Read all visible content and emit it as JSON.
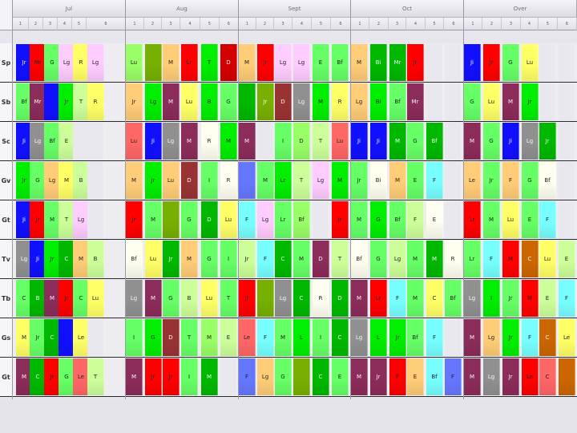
{
  "palette": {
    "r": "#ff0000",
    "R": "#d40000",
    "g": "#00ee00",
    "G": "#00b800",
    "b": "#1010ff",
    "y": "#ffff66",
    "p": "#ffccff",
    "m": "#8c2c5a",
    "o": "#ffcc77",
    "a": "#909090",
    "c": "#77ffff",
    "n": "#ccff99",
    "l": "#66ff66",
    "L": "#99ff66",
    "w": "#fffff0",
    "k": "#ff6666",
    "s": "#6677ff",
    "t": "#cc6600",
    "v": "#77b000",
    "d": "#993333",
    "e": "#e8e8ee"
  },
  "header": {
    "groups": [
      "Jul",
      "Aug",
      "Sept",
      "Oct",
      "Over"
    ],
    "subcols": [
      "1",
      "2",
      "3",
      "4",
      "5",
      "6",
      "1",
      "2",
      "3",
      "4",
      "5",
      "6",
      "1",
      "2",
      "3",
      "4",
      "5",
      "6",
      "1",
      "2",
      "3",
      "4",
      "5",
      "6",
      "1",
      "2",
      "3",
      "4",
      "5",
      "6"
    ]
  },
  "rows": [
    {
      "label": "Sp",
      "cells": [
        {
          "t": "Jr",
          "c": "b"
        },
        {
          "t": "Mr",
          "c": "r"
        },
        {
          "t": "G",
          "c": "l"
        },
        {
          "t": "Lg",
          "c": "p"
        },
        {
          "t": "R",
          "c": "y"
        },
        {
          "t": "Lg",
          "c": "p"
        },
        {
          "t": "Lu",
          "c": "L"
        },
        {
          "t": "",
          "c": "v"
        },
        {
          "t": "M",
          "c": "o"
        },
        {
          "t": "Lr",
          "c": "r"
        },
        {
          "t": "T",
          "c": "g"
        },
        {
          "t": "D",
          "c": "R"
        },
        {
          "t": "M",
          "c": "o"
        },
        {
          "t": "Jr",
          "c": "r"
        },
        {
          "t": "Lg",
          "c": "p"
        },
        {
          "t": "Lg",
          "c": "p"
        },
        {
          "t": "E",
          "c": "l"
        },
        {
          "t": "Bf",
          "c": "l"
        },
        {
          "t": "M",
          "c": "o"
        },
        {
          "t": "Bi",
          "c": "G"
        },
        {
          "t": "Mr",
          "c": "G"
        },
        {
          "t": "Jr",
          "c": "r"
        },
        {
          "t": "",
          "c": "e"
        },
        {
          "t": "",
          "c": "e"
        },
        {
          "t": "Ji",
          "c": "b"
        },
        {
          "t": "Jr",
          "c": "r"
        },
        {
          "t": "G",
          "c": "l"
        },
        {
          "t": "Lu",
          "c": "y"
        },
        {
          "t": "",
          "c": "e"
        },
        {
          "t": "",
          "c": "e"
        }
      ]
    },
    {
      "label": "Sb",
      "cells": [
        {
          "t": "Bf",
          "c": "l"
        },
        {
          "t": "Mr",
          "c": "m"
        },
        {
          "t": "",
          "c": "b"
        },
        {
          "t": "Jr",
          "c": "g"
        },
        {
          "t": "T",
          "c": "n"
        },
        {
          "t": "R",
          "c": "y"
        },
        {
          "t": "Jr",
          "c": "o"
        },
        {
          "t": "Lg",
          "c": "g"
        },
        {
          "t": "M",
          "c": "m"
        },
        {
          "t": "Lu",
          "c": "y"
        },
        {
          "t": "B",
          "c": "g"
        },
        {
          "t": "G",
          "c": "l"
        },
        {
          "t": "",
          "c": "G"
        },
        {
          "t": "Jr",
          "c": "v"
        },
        {
          "t": "D",
          "c": "d"
        },
        {
          "t": "Lg",
          "c": "a"
        },
        {
          "t": "M",
          "c": "g"
        },
        {
          "t": "R",
          "c": "y"
        },
        {
          "t": "Lg",
          "c": "o"
        },
        {
          "t": "Bi",
          "c": "g"
        },
        {
          "t": "Bf",
          "c": "l"
        },
        {
          "t": "Mr",
          "c": "m"
        },
        {
          "t": "",
          "c": "e"
        },
        {
          "t": "",
          "c": "e"
        },
        {
          "t": "G",
          "c": "l"
        },
        {
          "t": "Lu",
          "c": "y"
        },
        {
          "t": "M",
          "c": "m"
        },
        {
          "t": "Jr",
          "c": "g"
        },
        {
          "t": "",
          "c": "e"
        },
        {
          "t": "",
          "c": "e"
        }
      ]
    },
    {
      "label": "Sc",
      "cells": [
        {
          "t": "Ji",
          "c": "b"
        },
        {
          "t": "Lg",
          "c": "a"
        },
        {
          "t": "Bf",
          "c": "l"
        },
        {
          "t": "E",
          "c": "n"
        },
        {
          "t": "",
          "c": "e"
        },
        {
          "t": "",
          "c": "e"
        },
        {
          "t": "Lu",
          "c": "k"
        },
        {
          "t": "Ji",
          "c": "b"
        },
        {
          "t": "Lg",
          "c": "a"
        },
        {
          "t": "M",
          "c": "m"
        },
        {
          "t": "R",
          "c": "w"
        },
        {
          "t": "M",
          "c": "g"
        },
        {
          "t": "M",
          "c": "m"
        },
        {
          "t": "",
          "c": "e"
        },
        {
          "t": "I",
          "c": "l"
        },
        {
          "t": "D",
          "c": "L"
        },
        {
          "t": "T",
          "c": "n"
        },
        {
          "t": "Lu",
          "c": "k"
        },
        {
          "t": "Ji",
          "c": "b"
        },
        {
          "t": "Ji",
          "c": "b"
        },
        {
          "t": "M",
          "c": "G"
        },
        {
          "t": "G",
          "c": "l"
        },
        {
          "t": "Bf",
          "c": "G"
        },
        {
          "t": "",
          "c": "e"
        },
        {
          "t": "M",
          "c": "m"
        },
        {
          "t": "G",
          "c": "l"
        },
        {
          "t": "Ji",
          "c": "b"
        },
        {
          "t": "Lg",
          "c": "a"
        },
        {
          "t": "Jr",
          "c": "G"
        },
        {
          "t": "",
          "c": "e"
        }
      ]
    },
    {
      "label": "Gv",
      "cells": [
        {
          "t": "Jr",
          "c": "g"
        },
        {
          "t": "G",
          "c": "l"
        },
        {
          "t": "Lg",
          "c": "o"
        },
        {
          "t": "M",
          "c": "y"
        },
        {
          "t": "B",
          "c": "n"
        },
        {
          "t": "",
          "c": "e"
        },
        {
          "t": "M",
          "c": "o"
        },
        {
          "t": "Jr",
          "c": "g"
        },
        {
          "t": "Lu",
          "c": "o"
        },
        {
          "t": "D",
          "c": "d"
        },
        {
          "t": "I",
          "c": "l"
        },
        {
          "t": "R",
          "c": "w"
        },
        {
          "t": "",
          "c": "s"
        },
        {
          "t": "M",
          "c": "l"
        },
        {
          "t": "Lr",
          "c": "g"
        },
        {
          "t": "T",
          "c": "n"
        },
        {
          "t": "Lg",
          "c": "p"
        },
        {
          "t": "M",
          "c": "g"
        },
        {
          "t": "Jr",
          "c": "l"
        },
        {
          "t": "Bi",
          "c": "w"
        },
        {
          "t": "M",
          "c": "o"
        },
        {
          "t": "E",
          "c": "l"
        },
        {
          "t": "F",
          "c": "c"
        },
        {
          "t": "",
          "c": "e"
        },
        {
          "t": "Le",
          "c": "o"
        },
        {
          "t": "Jr",
          "c": "l"
        },
        {
          "t": "F",
          "c": "o"
        },
        {
          "t": "G",
          "c": "l"
        },
        {
          "t": "Bf",
          "c": "w"
        },
        {
          "t": "",
          "c": "e"
        }
      ]
    },
    {
      "label": "Gt",
      "cells": [
        {
          "t": "Ji",
          "c": "b"
        },
        {
          "t": "Jr",
          "c": "r"
        },
        {
          "t": "M",
          "c": "l"
        },
        {
          "t": "T",
          "c": "n"
        },
        {
          "t": "Lg",
          "c": "p"
        },
        {
          "t": "",
          "c": "e"
        },
        {
          "t": "Jr",
          "c": "r"
        },
        {
          "t": "M",
          "c": "l"
        },
        {
          "t": "",
          "c": "v"
        },
        {
          "t": "G",
          "c": "l"
        },
        {
          "t": "D",
          "c": "G"
        },
        {
          "t": "Lu",
          "c": "y"
        },
        {
          "t": "F",
          "c": "c"
        },
        {
          "t": "Lg",
          "c": "p"
        },
        {
          "t": "Lr",
          "c": "l"
        },
        {
          "t": "Bf",
          "c": "L"
        },
        {
          "t": "",
          "c": "e"
        },
        {
          "t": "Jr",
          "c": "r"
        },
        {
          "t": "M",
          "c": "l"
        },
        {
          "t": "G",
          "c": "g"
        },
        {
          "t": "Bf",
          "c": "l"
        },
        {
          "t": "F",
          "c": "n"
        },
        {
          "t": "E",
          "c": "w"
        },
        {
          "t": "",
          "c": "e"
        },
        {
          "t": "Lr",
          "c": "r"
        },
        {
          "t": "M",
          "c": "l"
        },
        {
          "t": "Lu",
          "c": "y"
        },
        {
          "t": "E",
          "c": "l"
        },
        {
          "t": "F",
          "c": "c"
        },
        {
          "t": "",
          "c": "e"
        }
      ]
    },
    {
      "label": "Tv",
      "cells": [
        {
          "t": "Lg",
          "c": "a"
        },
        {
          "t": "Ji",
          "c": "b"
        },
        {
          "t": "Jr",
          "c": "g"
        },
        {
          "t": "C",
          "c": "G"
        },
        {
          "t": "M",
          "c": "o"
        },
        {
          "t": "B",
          "c": "n"
        },
        {
          "t": "Bf",
          "c": "w"
        },
        {
          "t": "Lu",
          "c": "y"
        },
        {
          "t": "Jr",
          "c": "G"
        },
        {
          "t": "M",
          "c": "o"
        },
        {
          "t": "G",
          "c": "l"
        },
        {
          "t": "I",
          "c": "l"
        },
        {
          "t": "Jr",
          "c": "n"
        },
        {
          "t": "F",
          "c": "c"
        },
        {
          "t": "C",
          "c": "G"
        },
        {
          "t": "M",
          "c": "l"
        },
        {
          "t": "D",
          "c": "m"
        },
        {
          "t": "T",
          "c": "n"
        },
        {
          "t": "Bf",
          "c": "w"
        },
        {
          "t": "G",
          "c": "l"
        },
        {
          "t": "Lg",
          "c": "n"
        },
        {
          "t": "M",
          "c": "l"
        },
        {
          "t": "M",
          "c": "G"
        },
        {
          "t": "R",
          "c": "w"
        },
        {
          "t": "Lr",
          "c": "l"
        },
        {
          "t": "F",
          "c": "c"
        },
        {
          "t": "M",
          "c": "r"
        },
        {
          "t": "C",
          "c": "t"
        },
        {
          "t": "Lu",
          "c": "y"
        },
        {
          "t": "E",
          "c": "n"
        }
      ]
    },
    {
      "label": "Tb",
      "cells": [
        {
          "t": "C",
          "c": "l"
        },
        {
          "t": "B",
          "c": "G"
        },
        {
          "t": "M",
          "c": "m"
        },
        {
          "t": "Jr",
          "c": "r"
        },
        {
          "t": "C",
          "c": "l"
        },
        {
          "t": "Lu",
          "c": "y"
        },
        {
          "t": "Lg",
          "c": "a"
        },
        {
          "t": "M",
          "c": "m"
        },
        {
          "t": "G",
          "c": "l"
        },
        {
          "t": "B",
          "c": "n"
        },
        {
          "t": "Lu",
          "c": "y"
        },
        {
          "t": "T",
          "c": "l"
        },
        {
          "t": "Jr",
          "c": "r"
        },
        {
          "t": "",
          "c": "v"
        },
        {
          "t": "Lg",
          "c": "a"
        },
        {
          "t": "C",
          "c": "G"
        },
        {
          "t": "R",
          "c": "w"
        },
        {
          "t": "D",
          "c": "G"
        },
        {
          "t": "M",
          "c": "m"
        },
        {
          "t": "Lr",
          "c": "r"
        },
        {
          "t": "F",
          "c": "c"
        },
        {
          "t": "M",
          "c": "l"
        },
        {
          "t": "C",
          "c": "y"
        },
        {
          "t": "Bf",
          "c": "l"
        },
        {
          "t": "Lg",
          "c": "a"
        },
        {
          "t": "I",
          "c": "g"
        },
        {
          "t": "Jr",
          "c": "l"
        },
        {
          "t": "M",
          "c": "r"
        },
        {
          "t": "E",
          "c": "n"
        },
        {
          "t": "F",
          "c": "c"
        }
      ]
    },
    {
      "label": "Gs",
      "cells": [
        {
          "t": "M",
          "c": "y"
        },
        {
          "t": "Jr",
          "c": "l"
        },
        {
          "t": "C",
          "c": "G"
        },
        {
          "t": "",
          "c": "b"
        },
        {
          "t": "Le",
          "c": "y"
        },
        {
          "t": "",
          "c": "e"
        },
        {
          "t": "I",
          "c": "l"
        },
        {
          "t": "G",
          "c": "g"
        },
        {
          "t": "D",
          "c": "d"
        },
        {
          "t": "T",
          "c": "l"
        },
        {
          "t": "M",
          "c": "L"
        },
        {
          "t": "E",
          "c": "n"
        },
        {
          "t": "Le",
          "c": "k"
        },
        {
          "t": "F",
          "c": "c"
        },
        {
          "t": "M",
          "c": "l"
        },
        {
          "t": "L",
          "c": "g"
        },
        {
          "t": "I",
          "c": "l"
        },
        {
          "t": "C",
          "c": "G"
        },
        {
          "t": "Lg",
          "c": "a"
        },
        {
          "t": "L",
          "c": "g"
        },
        {
          "t": "Jr",
          "c": "g"
        },
        {
          "t": "Bf",
          "c": "l"
        },
        {
          "t": "F",
          "c": "c"
        },
        {
          "t": "",
          "c": "e"
        },
        {
          "t": "M",
          "c": "m"
        },
        {
          "t": "Lg",
          "c": "o"
        },
        {
          "t": "Jr",
          "c": "g"
        },
        {
          "t": "F",
          "c": "c"
        },
        {
          "t": "C",
          "c": "t"
        },
        {
          "t": "Le",
          "c": "y"
        }
      ]
    },
    {
      "label": "Gt",
      "cells": [
        {
          "t": "M",
          "c": "m"
        },
        {
          "t": "C",
          "c": "G"
        },
        {
          "t": "Jr",
          "c": "r"
        },
        {
          "t": "G",
          "c": "l"
        },
        {
          "t": "Le",
          "c": "k"
        },
        {
          "t": "T",
          "c": "n"
        },
        {
          "t": "M",
          "c": "m"
        },
        {
          "t": "Jr",
          "c": "r"
        },
        {
          "t": "Jr",
          "c": "r"
        },
        {
          "t": "I",
          "c": "l"
        },
        {
          "t": "M",
          "c": "G"
        },
        {
          "t": "",
          "c": "e"
        },
        {
          "t": "F",
          "c": "s"
        },
        {
          "t": "Lg",
          "c": "o"
        },
        {
          "t": "G",
          "c": "l"
        },
        {
          "t": "",
          "c": "v"
        },
        {
          "t": "C",
          "c": "G"
        },
        {
          "t": "E",
          "c": "l"
        },
        {
          "t": "M",
          "c": "m"
        },
        {
          "t": "Jr",
          "c": "m"
        },
        {
          "t": "F",
          "c": "r"
        },
        {
          "t": "E",
          "c": "o"
        },
        {
          "t": "Bf",
          "c": "c"
        },
        {
          "t": "F",
          "c": "s"
        },
        {
          "t": "M",
          "c": "m"
        },
        {
          "t": "Lg",
          "c": "a"
        },
        {
          "t": "Jr",
          "c": "m"
        },
        {
          "t": "Le",
          "c": "r"
        },
        {
          "t": "C",
          "c": "k"
        },
        {
          "t": "",
          "c": "t"
        }
      ]
    }
  ]
}
